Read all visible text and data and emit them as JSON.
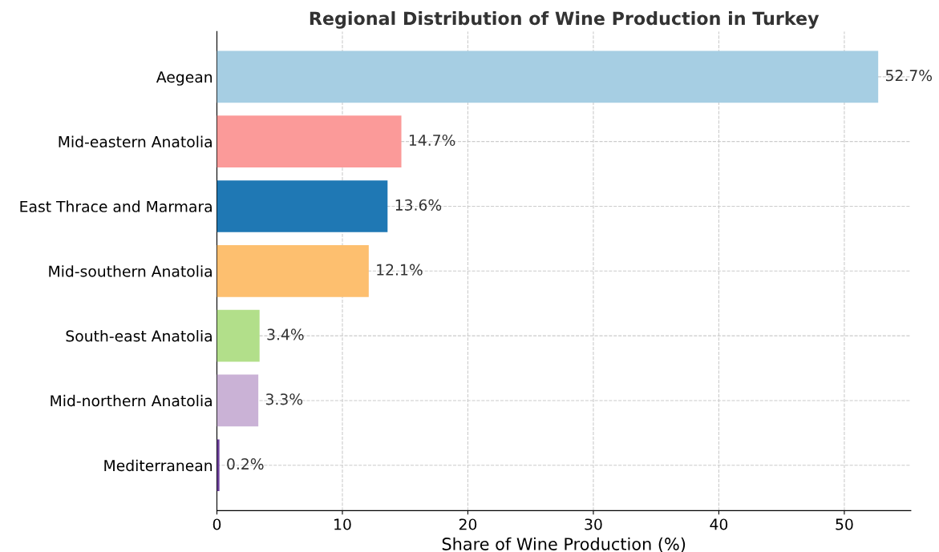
{
  "chart_data": {
    "type": "bar",
    "orientation": "horizontal",
    "title": "Regional Distribution of Wine Production in Turkey",
    "xlabel": "Share of Wine Production (%)",
    "categories": [
      "Aegean",
      "Mid-eastern Anatolia",
      "East Thrace and Marmara",
      "Mid-southern Anatolia",
      "South-east Anatolia",
      "Mid-northern Anatolia",
      "Mediterranean"
    ],
    "values": [
      52.7,
      14.7,
      13.6,
      12.1,
      3.4,
      3.3,
      0.2
    ],
    "colors": [
      "#a6cee3",
      "#fb9a99",
      "#1f78b4",
      "#fdbf6f",
      "#b2df8a",
      "#cab2d6",
      "#6a3d9a"
    ],
    "value_labels": [
      "52.7%",
      "14.7%",
      "13.6%",
      "12.1%",
      "3.4%",
      "3.3%",
      "0.2%"
    ],
    "xlim": [
      0,
      55.3
    ],
    "xticks": [
      0,
      10,
      20,
      30,
      40,
      50
    ],
    "grid": true
  }
}
